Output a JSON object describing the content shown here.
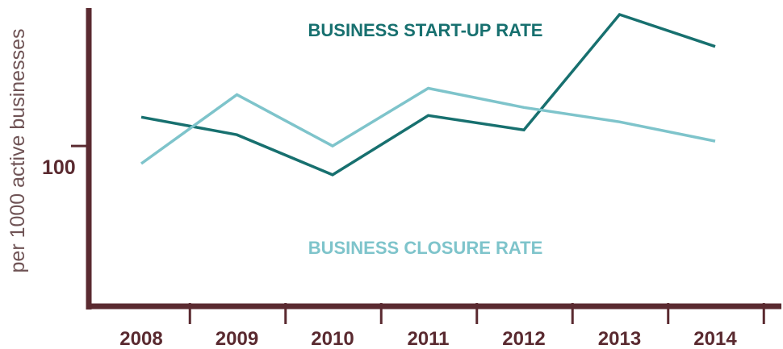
{
  "chart_data": {
    "type": "line",
    "title": "",
    "xlabel": "",
    "ylabel": "per 1000 active businesses",
    "categories": [
      "2008",
      "2009",
      "2010",
      "2011",
      "2012",
      "2013",
      "2014"
    ],
    "ytick_labels": [
      "100"
    ],
    "ylim": [
      50,
      143
    ],
    "series": [
      {
        "name": "BUSINESS START-UP RATE",
        "color": "#17706f",
        "values": [
          109,
          103.5,
          91,
          109.5,
          105,
          141,
          131
        ]
      },
      {
        "name": "BUSINESS CLOSURE RATE",
        "color": "#7ec4cb",
        "values": [
          94.5,
          116,
          100,
          118,
          112,
          107.5,
          101.5
        ]
      }
    ],
    "axis_color": "#5a2a30",
    "grid": false,
    "legend": "inline labels"
  }
}
